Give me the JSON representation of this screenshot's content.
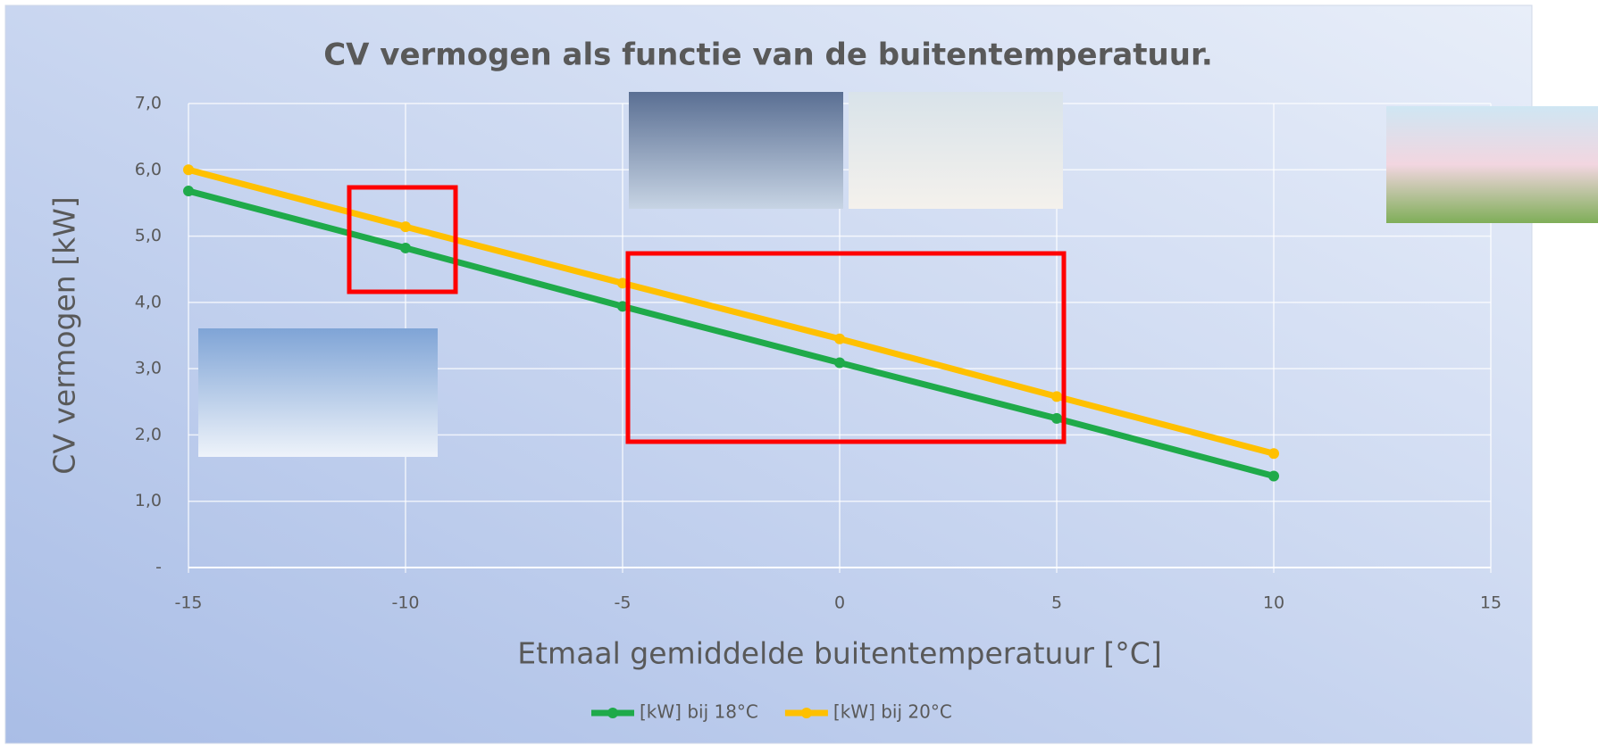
{
  "chart_data": {
    "type": "line",
    "title": "CV vermogen als functie van de buitentemperatuur.",
    "x_label": "Etmaal gemiddelde buitentemperatuur [°C]",
    "y_label": "CV vermogen [kW]",
    "x": [
      -15,
      -10,
      -5,
      0,
      5,
      10
    ],
    "series": [
      {
        "name": "[kW] bij 18°C",
        "color": "#1faa4a",
        "values": [
          5.68,
          4.82,
          3.94,
          3.09,
          2.25,
          1.38
        ]
      },
      {
        "name": "[kW] bij 20°C",
        "color": "#ffc000",
        "values": [
          6.0,
          5.14,
          4.29,
          3.45,
          2.58,
          1.72
        ]
      }
    ],
    "xlim": [
      -15,
      15
    ],
    "xticks": [
      -15,
      -10,
      -5,
      0,
      5,
      10,
      15
    ],
    "ylim": [
      0,
      7
    ],
    "yticks": [
      {
        "value": 0,
        "label": "-"
      },
      {
        "value": 1,
        "label": "1,0"
      },
      {
        "value": 2,
        "label": "2,0"
      },
      {
        "value": 3,
        "label": "3,0"
      },
      {
        "value": 4,
        "label": "4,0"
      },
      {
        "value": 5,
        "label": "5,0"
      },
      {
        "value": 6,
        "label": "6,0"
      },
      {
        "value": 7,
        "label": "7,0"
      }
    ],
    "grid": true,
    "legend": "bottom"
  }
}
